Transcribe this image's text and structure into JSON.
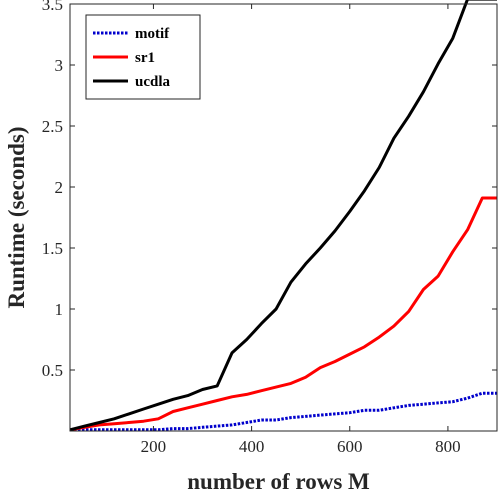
{
  "chart_data": {
    "type": "line",
    "title": "",
    "xlabel": "number of rows M",
    "ylabel": "Runtime (seconds)",
    "xlim": [
      30,
      900
    ],
    "ylim": [
      0,
      3.5
    ],
    "xticks": [
      200,
      400,
      600,
      800
    ],
    "yticks": [
      0.5,
      1,
      1.5,
      2,
      2.5,
      3,
      3.5
    ],
    "xtick_labels": [
      "200",
      "400",
      "600",
      "800"
    ],
    "ytick_labels": [
      "0.5",
      "1",
      "1.5",
      "2",
      "2.5",
      "3",
      "3.5"
    ],
    "grid": false,
    "legend_position": "top-left",
    "x": [
      30,
      60,
      90,
      120,
      150,
      180,
      210,
      240,
      270,
      300,
      330,
      360,
      390,
      420,
      450,
      480,
      510,
      540,
      570,
      600,
      630,
      660,
      690,
      720,
      750,
      780,
      810,
      840,
      870,
      900
    ],
    "series": [
      {
        "name": "motif",
        "color": "#0000cc",
        "style": "dotted",
        "values": [
          0.01,
          0.01,
          0.01,
          0.01,
          0.01,
          0.01,
          0.01,
          0.02,
          0.02,
          0.03,
          0.04,
          0.05,
          0.07,
          0.09,
          0.09,
          0.11,
          0.12,
          0.13,
          0.14,
          0.15,
          0.17,
          0.17,
          0.19,
          0.21,
          0.22,
          0.23,
          0.24,
          0.27,
          0.31,
          0.31
        ]
      },
      {
        "name": "sr1",
        "color": "#ff0000",
        "style": "solid",
        "values": [
          0.01,
          0.03,
          0.05,
          0.06,
          0.07,
          0.08,
          0.1,
          0.16,
          0.19,
          0.22,
          0.25,
          0.28,
          0.3,
          0.33,
          0.36,
          0.39,
          0.44,
          0.52,
          0.57,
          0.63,
          0.69,
          0.77,
          0.86,
          0.98,
          1.16,
          1.27,
          1.47,
          1.65,
          1.91,
          1.91
        ]
      },
      {
        "name": "ucdla",
        "color": "#000000",
        "style": "solid",
        "values": [
          0.01,
          0.04,
          0.07,
          0.1,
          0.14,
          0.18,
          0.22,
          0.26,
          0.29,
          0.34,
          0.37,
          0.64,
          0.75,
          0.88,
          1.0,
          1.22,
          1.37,
          1.5,
          1.64,
          1.8,
          1.97,
          2.16,
          2.4,
          2.58,
          2.78,
          3.01,
          3.22,
          3.54,
          3.54,
          3.54
        ]
      }
    ]
  }
}
